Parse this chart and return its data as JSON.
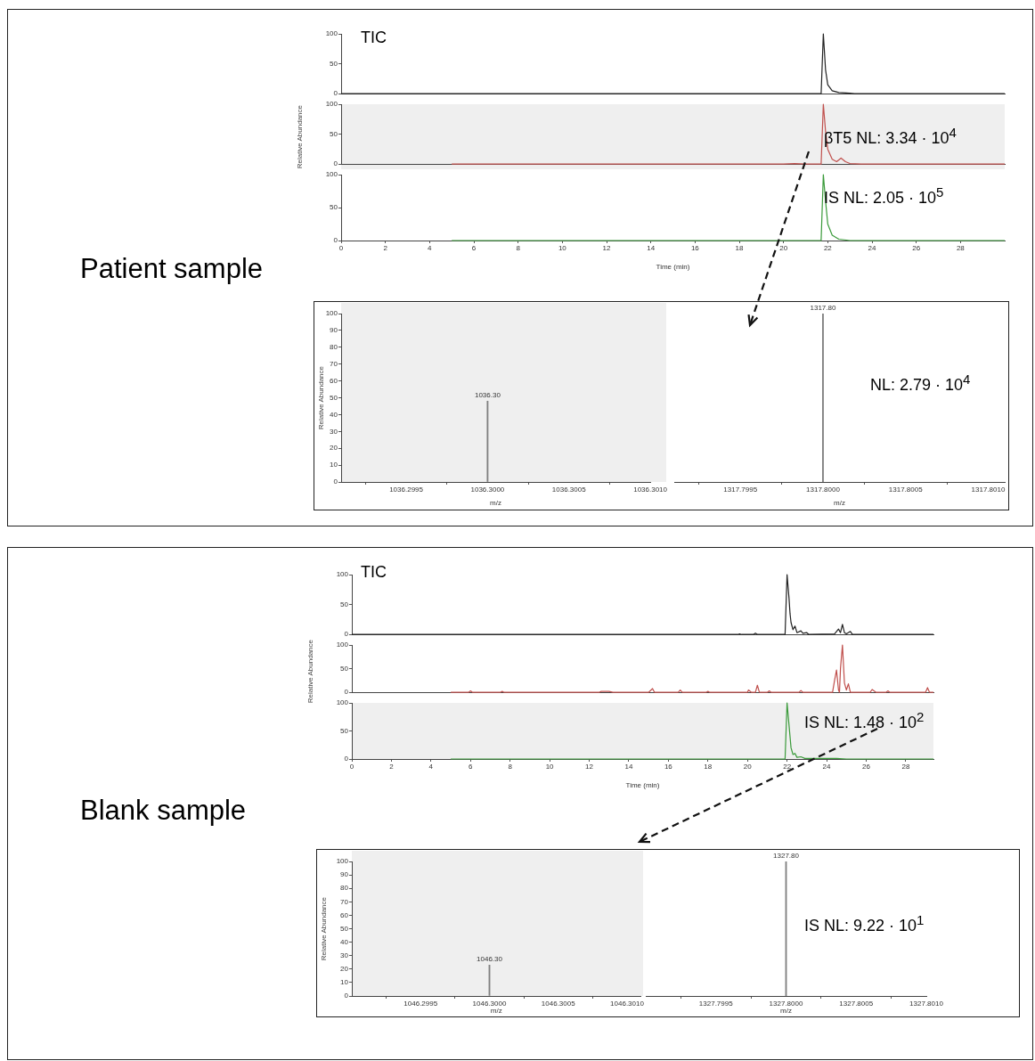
{
  "chart_data": [
    {
      "type": "line",
      "title": "Patient sample",
      "annotations": [
        "TIC"
      ],
      "xlim": [
        0,
        30
      ],
      "ylim": [
        0,
        100
      ],
      "yticks": [
        0,
        50,
        100
      ],
      "tick_labels": "y",
      "series": [
        {
          "color": "#222222",
          "x": [
            0,
            21.7,
            21.8,
            21.9,
            22.0,
            22.2,
            22.5,
            23.0,
            23.2,
            30
          ],
          "values": [
            0,
            0,
            100,
            40,
            15,
            5,
            2,
            1,
            0,
            0
          ]
        }
      ]
    },
    {
      "type": "line",
      "ylabel": "Relative Abundance",
      "annotations": [
        "βT5 NL: 3.34 · 10$^{4}$"
      ],
      "xlim": [
        0,
        30
      ],
      "ylim": [
        0,
        100
      ],
      "yticks": [
        0,
        50,
        100
      ],
      "tick_labels": "y",
      "series": [
        {
          "color": "#c0504d",
          "x": [
            5,
            20,
            20.5,
            21,
            21.7,
            21.8,
            21.9,
            22.0,
            22.2,
            22.4,
            22.6,
            22.8,
            23.0,
            23.5,
            30
          ],
          "values": [
            0,
            0,
            1,
            0,
            0,
            100,
            55,
            25,
            8,
            4,
            10,
            4,
            1,
            0,
            0
          ]
        }
      ]
    },
    {
      "type": "line",
      "xlabel": "Time (min)",
      "annotations": [
        "IS NL: 2.05 · 10$^{5}$"
      ],
      "xlim": [
        0,
        30
      ],
      "xticks": [
        0,
        2,
        4,
        6,
        8,
        10,
        12,
        14,
        16,
        18,
        20,
        22,
        24,
        26,
        28
      ],
      "ylim": [
        0,
        100
      ],
      "yticks": [
        0,
        50,
        100
      ],
      "series": [
        {
          "color": "#3a9a3a",
          "x": [
            5,
            21.7,
            21.8,
            21.9,
            22.0,
            22.2,
            22.5,
            23,
            30
          ],
          "values": [
            0,
            0,
            100,
            60,
            25,
            8,
            2,
            0,
            0
          ]
        }
      ]
    },
    {
      "type": "bar",
      "xlabel": "m/z",
      "ylabel": "Relative Abundance",
      "xlim": [
        1036.2991,
        1036.301
      ],
      "xticks": [
        1036.2995,
        {
          "value": 1036.3,
          "label": "1036.3000"
        },
        1036.3005,
        {
          "value": 1036.301,
          "label": "1036.3010"
        }
      ],
      "ylim": [
        0,
        100
      ],
      "yticks": [
        0,
        10,
        20,
        30,
        40,
        50,
        60,
        70,
        80,
        90,
        100
      ],
      "annotations": [
        {
          "text": "1036.30",
          "x": 1036.3,
          "y": 48
        }
      ],
      "series": [
        {
          "color": "#808080",
          "x": [
            1036.3
          ],
          "values": [
            48
          ]
        }
      ]
    },
    {
      "type": "bar",
      "xlabel": "m/z",
      "annotations": [
        "NL: 2.79 · 10$^{4}$",
        {
          "text": "1317.80",
          "x": 1317.8,
          "y": 100
        }
      ],
      "xlim": [
        1317.7991,
        1317.8011
      ],
      "xticks": [
        1317.7995,
        {
          "value": 1317.8,
          "label": "1317.8000"
        },
        1317.8005,
        {
          "value": 1317.801,
          "label": "1317.8010"
        }
      ],
      "ylim": [
        0,
        100
      ],
      "tick_labels": "x",
      "series": [
        {
          "color": "#808080",
          "x": [
            1317.8
          ],
          "values": [
            100
          ]
        }
      ]
    },
    {
      "type": "line",
      "title": "Blank sample",
      "annotations": [
        "TIC"
      ],
      "xlim": [
        0,
        29.4
      ],
      "ylim": [
        0,
        100
      ],
      "yticks": [
        0,
        50,
        100
      ],
      "tick_labels": "y",
      "series": [
        {
          "color": "#222222",
          "x": [
            0,
            19.5,
            19.6,
            19.7,
            20.3,
            20.4,
            20.5,
            21.9,
            22.0,
            22.1,
            22.15,
            22.2,
            22.3,
            22.4,
            22.5,
            22.7,
            22.8,
            23.0,
            23.1,
            24.4,
            24.5,
            24.6,
            24.7,
            24.8,
            24.9,
            25.0,
            25.2,
            25.3,
            29.4
          ],
          "values": [
            0,
            0,
            1,
            0,
            0,
            2,
            0,
            0,
            100,
            60,
            35,
            20,
            8,
            14,
            3,
            6,
            2,
            3,
            0,
            1,
            5,
            9,
            3,
            17,
            3,
            1,
            5,
            0,
            0
          ]
        }
      ]
    },
    {
      "type": "line",
      "ylabel": "Relative Abundance",
      "xlim": [
        0,
        29.4
      ],
      "ylim": [
        0,
        100
      ],
      "yticks": [
        0,
        50,
        100
      ],
      "tick_labels": "y",
      "series": [
        {
          "color": "#c0504d",
          "x": [
            5,
            5.9,
            6.0,
            6.1,
            7.5,
            7.6,
            7.7,
            12.5,
            12.6,
            13,
            13.2,
            15.0,
            15.2,
            15.3,
            16.5,
            16.6,
            16.7,
            17.9,
            18,
            18.1,
            20,
            20.05,
            20.2,
            20.4,
            20.5,
            20.6,
            21.0,
            21.1,
            21.2,
            22.6,
            22.7,
            22.8,
            24.3,
            24.4,
            24.5,
            24.6,
            24.65,
            24.7,
            24.8,
            24.9,
            25.0,
            25.1,
            25.2,
            26.2,
            26.3,
            26.5,
            27.0,
            27.1,
            27.2,
            29.0,
            29.1,
            29.2,
            29.4
          ],
          "values": [
            0,
            0,
            3,
            0,
            0,
            2,
            0,
            0,
            2,
            2,
            0,
            0,
            8,
            0,
            0,
            5,
            0,
            0,
            2,
            0,
            0,
            5,
            0,
            0,
            15,
            0,
            0,
            3,
            0,
            0,
            4,
            0,
            0,
            25,
            47,
            5,
            0,
            50,
            100,
            20,
            5,
            18,
            0,
            0,
            6,
            0,
            0,
            3,
            0,
            0,
            10,
            0,
            0
          ]
        }
      ]
    },
    {
      "type": "line",
      "xlabel": "Time (min)",
      "annotations": [
        "IS NL: 1.48 · 10$^{2}$"
      ],
      "xlim": [
        0,
        29.4
      ],
      "xticks": [
        0,
        2,
        4,
        6,
        8,
        10,
        12,
        14,
        16,
        18,
        20,
        22,
        24,
        26,
        28
      ],
      "ylim": [
        0,
        100
      ],
      "yticks": [
        0,
        50,
        100
      ],
      "series": [
        {
          "color": "#3a9a3a",
          "x": [
            5,
            21.9,
            22.0,
            22.1,
            22.2,
            22.3,
            22.4,
            22.5,
            22.7,
            22.9,
            23.0,
            24.5,
            25,
            29.4
          ],
          "values": [
            0,
            0,
            100,
            60,
            20,
            8,
            10,
            3,
            4,
            1,
            1,
            1,
            0,
            0
          ]
        }
      ]
    },
    {
      "type": "bar",
      "xlabel": "m/z",
      "ylabel": "Relative Abundance",
      "xlim": [
        1046.299,
        1046.3011
      ],
      "xticks": [
        1046.2995,
        {
          "value": 1046.3,
          "label": "1046.3000"
        },
        1046.3005,
        {
          "value": 1046.301,
          "label": "1046.3010"
        }
      ],
      "ylim": [
        0,
        100
      ],
      "yticks": [
        0,
        10,
        20,
        30,
        40,
        50,
        60,
        70,
        80,
        90,
        100
      ],
      "annotations": [
        {
          "text": "1046.30",
          "x": 1046.3,
          "y": 23
        }
      ],
      "series": [
        {
          "color": "#808080",
          "x": [
            1046.3
          ],
          "values": [
            23
          ]
        }
      ]
    },
    {
      "type": "bar",
      "xlabel": "m/z",
      "annotations": [
        "IS NL: 9.22 · 10$^{1}$",
        {
          "text": "1327.80",
          "x": 1327.8,
          "y": 100
        }
      ],
      "xlim": [
        1327.799,
        1327.801
      ],
      "xticks": [
        1327.7995,
        {
          "value": 1327.8,
          "label": "1327.8000"
        },
        1327.8005,
        {
          "value": 1327.801,
          "label": "1327.8010"
        }
      ],
      "ylim": [
        0,
        100
      ],
      "tick_labels": "x",
      "series": [
        {
          "color": "#808080",
          "x": [
            1327.8
          ],
          "values": [
            100
          ]
        }
      ]
    }
  ]
}
